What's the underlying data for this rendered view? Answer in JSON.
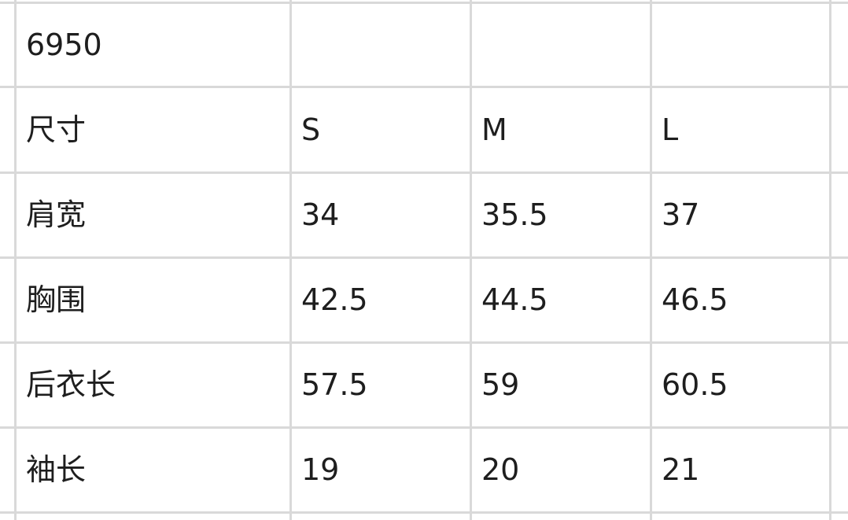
{
  "table": {
    "rows": [
      [
        "6950",
        "",
        "",
        ""
      ],
      [
        "尺寸",
        "S",
        "M",
        "L"
      ],
      [
        "肩宽",
        "34",
        "35.5",
        "37"
      ],
      [
        "胸围",
        "42.5",
        "44.5",
        "46.5"
      ],
      [
        "后衣长",
        "57.5",
        "59",
        "60.5"
      ],
      [
        "袖长",
        "19",
        "20",
        "21"
      ]
    ]
  }
}
